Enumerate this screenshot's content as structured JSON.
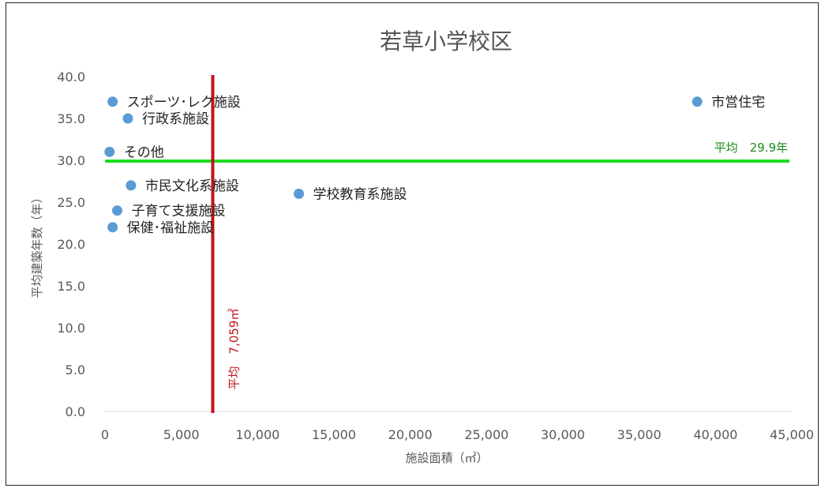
{
  "chart_data": {
    "type": "scatter",
    "title": "若草小学校区",
    "xlabel": "施設面積（㎡）",
    "ylabel": "平均建築年数（年）",
    "xlim": [
      0,
      45000
    ],
    "ylim": [
      0,
      40
    ],
    "x_ticks": [
      "0",
      "5,000",
      "10,000",
      "15,000",
      "20,000",
      "25,000",
      "30,000",
      "35,000",
      "40,000",
      "45,000"
    ],
    "y_ticks": [
      "0.0",
      "5.0",
      "10.0",
      "15.0",
      "20.0",
      "25.0",
      "30.0",
      "35.0",
      "40.0"
    ],
    "points": [
      {
        "label": "スポーツ･レク施設",
        "x": 500,
        "y": 37
      },
      {
        "label": "行政系施設",
        "x": 1500,
        "y": 35
      },
      {
        "label": "その他",
        "x": 300,
        "y": 31
      },
      {
        "label": "市民文化系施設",
        "x": 1700,
        "y": 27
      },
      {
        "label": "子育て支援施設",
        "x": 800,
        "y": 24
      },
      {
        "label": "保健･福祉施設",
        "x": 500,
        "y": 22
      },
      {
        "label": "学校教育系施設",
        "x": 12700,
        "y": 26
      },
      {
        "label": "市営住宅",
        "x": 38800,
        "y": 37
      }
    ],
    "avg_x": {
      "value": 7059,
      "label": "平均　7,059㎡",
      "color": "#c0141c"
    },
    "avg_y": {
      "value": 29.9,
      "label": "平均　29.9年",
      "color": "#22dd22"
    },
    "marker_color": "#5b9bd5"
  }
}
